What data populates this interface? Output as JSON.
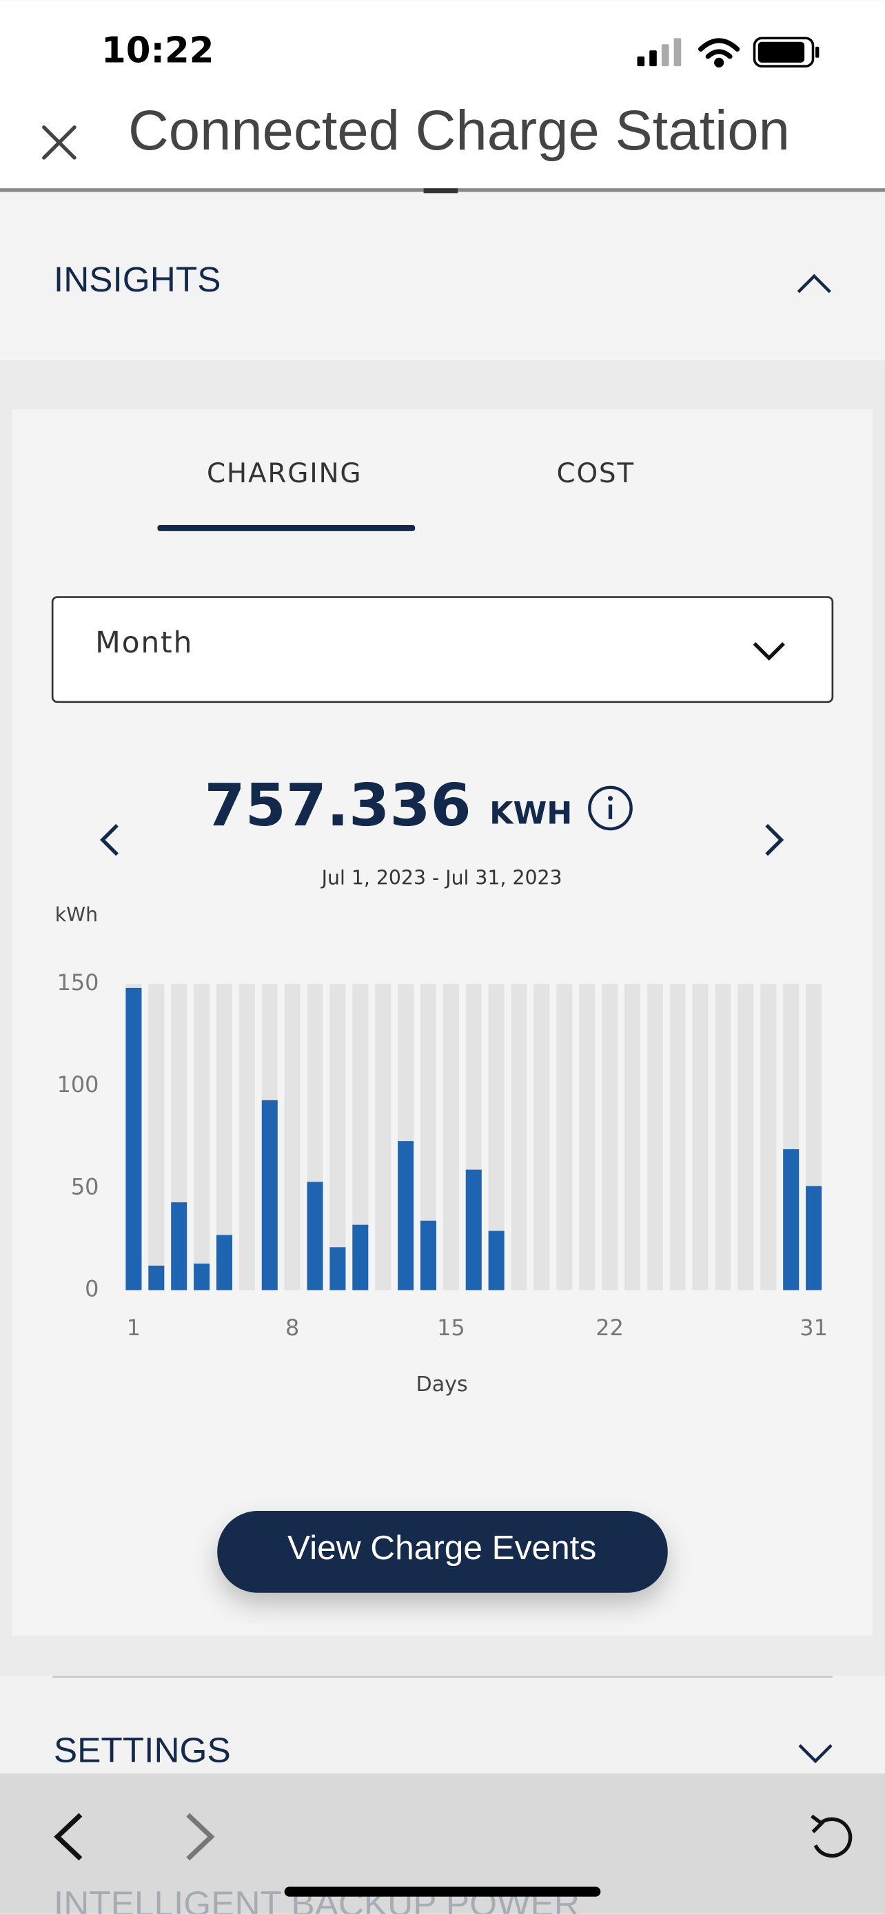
{
  "status_bar": {
    "time": "10:22"
  },
  "header": {
    "title": "Connected Charge Station"
  },
  "insights": {
    "title": "INSIGHTS",
    "tabs": [
      "CHARGING",
      "COST"
    ],
    "period_select": "Month",
    "total": {
      "value": "757.336",
      "unit": "KWH"
    },
    "date_range": "Jul 1, 2023 - Jul 31, 2023",
    "button": "View Charge Events"
  },
  "chart_data": {
    "type": "bar",
    "y_label": "kWh",
    "x_label": "Days",
    "categories": [
      1,
      null,
      null,
      null,
      null,
      null,
      null,
      8,
      null,
      null,
      null,
      null,
      null,
      null,
      15,
      null,
      null,
      null,
      null,
      null,
      null,
      22,
      null,
      null,
      null,
      null,
      null,
      null,
      null,
      null,
      31
    ],
    "values": [
      148,
      12,
      43,
      13,
      27,
      0,
      93,
      0,
      53,
      21,
      32,
      0,
      73,
      34,
      0,
      59,
      29,
      0,
      0,
      0,
      0,
      0,
      0,
      0,
      0,
      0,
      0,
      0,
      0,
      69,
      51
    ],
    "color": "#1f64b0",
    "ylim": [
      0,
      150
    ],
    "yticks": [
      0,
      50,
      100,
      150
    ]
  },
  "sections": [
    "SETTINGS",
    "INTELLIGENT BACKUP POWER"
  ]
}
